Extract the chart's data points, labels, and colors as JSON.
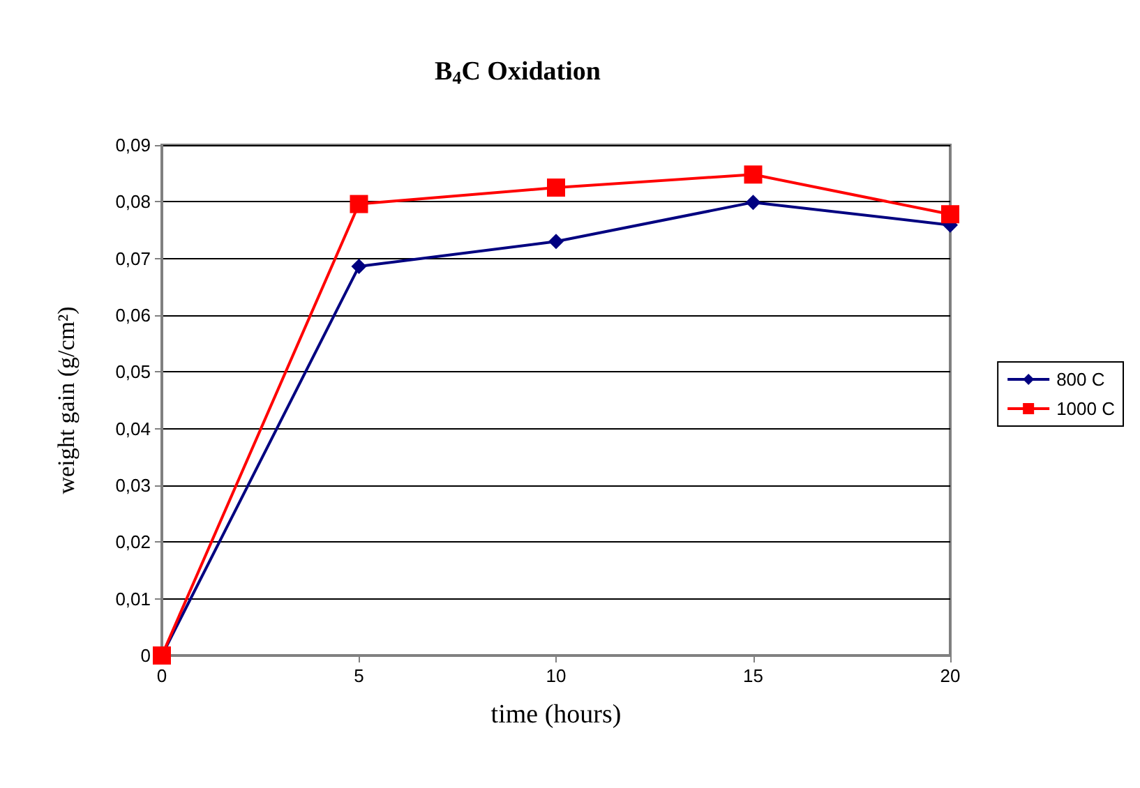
{
  "chart_data": {
    "type": "line",
    "title": "B$_{4}$C Oxidation",
    "xlabel": "time (hours)",
    "ylabel": "weight gain (g/cm²)",
    "xlim": [
      0,
      20
    ],
    "xticks": [
      0,
      5,
      10,
      15,
      20
    ],
    "ylim": [
      0,
      0.09
    ],
    "yticks": [
      0,
      {
        "value": 0.01,
        "label": "0,01"
      },
      {
        "value": 0.02,
        "label": "0,02"
      },
      {
        "value": 0.03,
        "label": "0,03"
      },
      {
        "value": 0.04,
        "label": "0,04"
      },
      {
        "value": 0.05,
        "label": "0,05"
      },
      {
        "value": 0.06,
        "label": "0,06"
      },
      {
        "value": 0.07,
        "label": "0,07"
      },
      {
        "value": 0.08,
        "label": "0,08"
      },
      {
        "value": 0.09,
        "label": "0,09"
      }
    ],
    "x": [
      0,
      5,
      10,
      15,
      20
    ],
    "series": [
      {
        "name": "800 C",
        "color": "#000080",
        "marker": "diamond",
        "values": [
          0,
          0.0686,
          0.073,
          0.0799,
          0.0759
        ]
      },
      {
        "name": "1000 C",
        "color": "#ff0000",
        "marker": "square",
        "values": [
          0,
          0.0796,
          0.0825,
          0.0848,
          0.0778
        ]
      }
    ],
    "grid": "y",
    "legend": "right"
  }
}
